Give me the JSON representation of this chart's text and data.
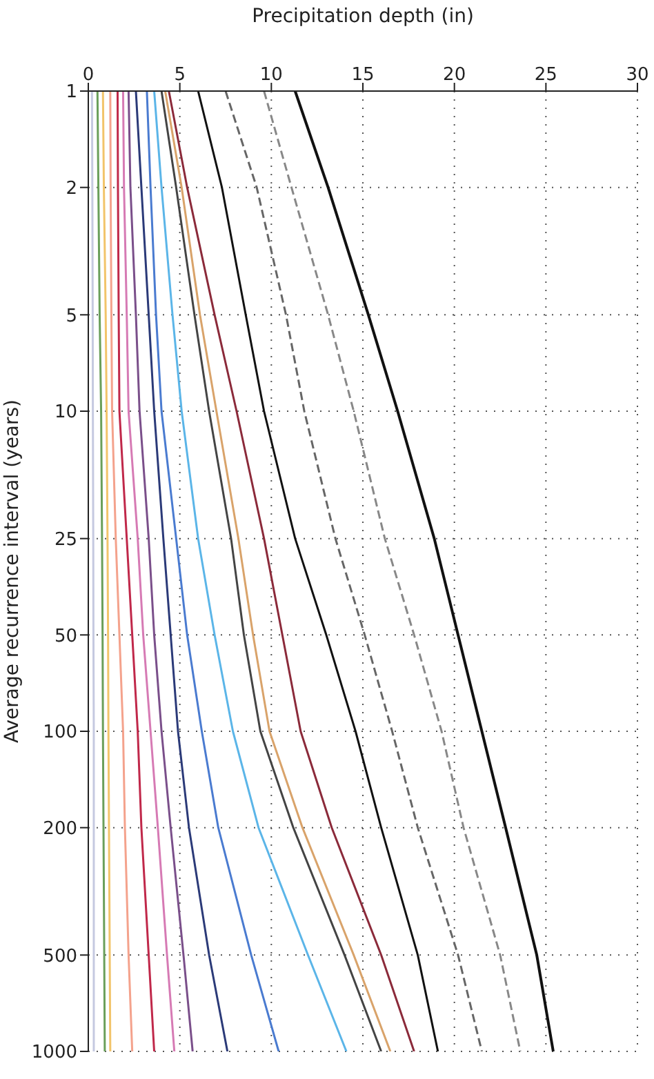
{
  "chart_data": {
    "type": "line",
    "xlabel": "Precipitation depth (in)",
    "ylabel": "Average recurrence interval (years)",
    "log": "y",
    "grid": true,
    "marker": "none",
    "xlim": [
      0,
      30
    ],
    "xticks": [
      0,
      5,
      10,
      15,
      20,
      25,
      30
    ],
    "ylim": [
      1000,
      1
    ],
    "yticks": [
      1,
      2,
      5,
      10,
      25,
      50,
      100,
      200,
      500,
      1000
    ],
    "series": [
      {
        "color": "#c5c9e0",
        "x": [
          0.2,
          0.22,
          0.24,
          0.25,
          0.27,
          0.28,
          0.3,
          0.3,
          0.3,
          0.3
        ],
        "values": [
          1,
          2,
          5,
          10,
          25,
          50,
          100,
          200,
          500,
          1000
        ]
      },
      {
        "color": "#6a9f5a",
        "x": [
          0.5,
          0.55,
          0.62,
          0.7,
          0.75,
          0.78,
          0.8,
          0.83,
          0.87,
          0.9
        ],
        "values": [
          1,
          2,
          5,
          10,
          25,
          50,
          100,
          200,
          500,
          1000
        ]
      },
      {
        "color": "#f2c46a",
        "x": [
          0.8,
          0.85,
          0.95,
          1.0,
          1.05,
          1.08,
          1.1,
          1.13,
          1.17,
          1.2
        ],
        "values": [
          1,
          2,
          5,
          10,
          25,
          50,
          100,
          200,
          500,
          1000
        ]
      },
      {
        "color": "#f4a28c",
        "x": [
          1.2,
          1.22,
          1.26,
          1.3,
          1.5,
          1.7,
          1.9,
          2.0,
          2.2,
          2.4
        ],
        "values": [
          1,
          2,
          5,
          10,
          25,
          50,
          100,
          200,
          500,
          1000
        ]
      },
      {
        "color": "#c0284a",
        "x": [
          1.6,
          1.62,
          1.66,
          1.7,
          2.1,
          2.4,
          2.7,
          2.9,
          3.3,
          3.6
        ],
        "values": [
          1,
          2,
          5,
          10,
          25,
          50,
          100,
          200,
          500,
          1000
        ]
      },
      {
        "color": "#d67ab4",
        "x": [
          1.9,
          1.95,
          2.1,
          2.2,
          2.7,
          3.0,
          3.4,
          3.8,
          4.3,
          4.7
        ],
        "values": [
          1,
          2,
          5,
          10,
          25,
          50,
          100,
          200,
          500,
          1000
        ]
      },
      {
        "color": "#7a4f8a",
        "x": [
          2.2,
          2.3,
          2.6,
          2.8,
          3.3,
          3.6,
          4.0,
          4.5,
          5.2,
          5.7
        ],
        "values": [
          1,
          2,
          5,
          10,
          25,
          50,
          100,
          200,
          500,
          1000
        ]
      },
      {
        "color": "#2b3a78",
        "x": [
          2.6,
          2.9,
          3.3,
          3.6,
          4.1,
          4.5,
          4.9,
          5.5,
          6.6,
          7.6
        ],
        "values": [
          1,
          2,
          5,
          10,
          25,
          50,
          100,
          200,
          500,
          1000
        ]
      },
      {
        "color": "#4a7bd0",
        "x": [
          3.2,
          3.4,
          3.7,
          4.0,
          4.8,
          5.4,
          6.2,
          7.1,
          8.9,
          10.4
        ],
        "values": [
          1,
          2,
          5,
          10,
          25,
          50,
          100,
          200,
          500,
          1000
        ]
      },
      {
        "color": "#5bb5e8",
        "x": [
          3.6,
          4.0,
          4.6,
          5.1,
          6.0,
          6.9,
          7.9,
          9.3,
          12.0,
          14.1
        ],
        "values": [
          1,
          2,
          5,
          10,
          25,
          50,
          100,
          200,
          500,
          1000
        ]
      },
      {
        "color": "#444444",
        "x": [
          4.0,
          4.8,
          5.8,
          6.6,
          7.8,
          8.5,
          9.4,
          11.2,
          14.0,
          16.0
        ],
        "values": [
          1,
          2,
          5,
          10,
          25,
          50,
          100,
          200,
          500,
          1000
        ]
      },
      {
        "color": "#d9a36a",
        "x": [
          4.2,
          5.1,
          6.1,
          7.0,
          8.2,
          9.0,
          9.9,
          11.7,
          14.5,
          16.5
        ],
        "values": [
          1,
          2,
          5,
          10,
          25,
          50,
          100,
          200,
          500,
          1000
        ]
      },
      {
        "color": "#8b2a3a",
        "x": [
          4.4,
          5.4,
          6.9,
          8.1,
          9.6,
          10.6,
          11.6,
          13.3,
          16.0,
          17.8
        ],
        "values": [
          1,
          2,
          5,
          10,
          25,
          50,
          100,
          200,
          500,
          1000
        ]
      },
      {
        "color": "#111111",
        "x": [
          6.0,
          7.3,
          8.6,
          9.6,
          11.3,
          13.0,
          14.6,
          16.0,
          18.0,
          19.1
        ],
        "values": [
          1,
          2,
          5,
          10,
          25,
          50,
          100,
          200,
          500,
          1000
        ]
      },
      {
        "color": "#666666",
        "line_style": "dashed",
        "x": [
          7.5,
          9.2,
          10.8,
          11.8,
          13.5,
          15.1,
          16.6,
          18.0,
          20.2,
          21.5
        ],
        "values": [
          1,
          2,
          5,
          10,
          25,
          50,
          100,
          200,
          500,
          1000
        ]
      },
      {
        "color": "#888888",
        "line_style": "dashed",
        "x": [
          9.6,
          11.1,
          13.1,
          14.5,
          16.2,
          17.8,
          19.3,
          20.5,
          22.5,
          23.6
        ],
        "values": [
          1,
          2,
          5,
          10,
          25,
          50,
          100,
          200,
          500,
          1000
        ]
      },
      {
        "color": "#111111",
        "x": [
          11.3,
          13.1,
          15.3,
          16.9,
          18.9,
          20.2,
          21.5,
          22.8,
          24.5,
          25.4
        ],
        "values": [
          1,
          2,
          5,
          10,
          25,
          50,
          100,
          200,
          500,
          1000
        ]
      }
    ]
  }
}
